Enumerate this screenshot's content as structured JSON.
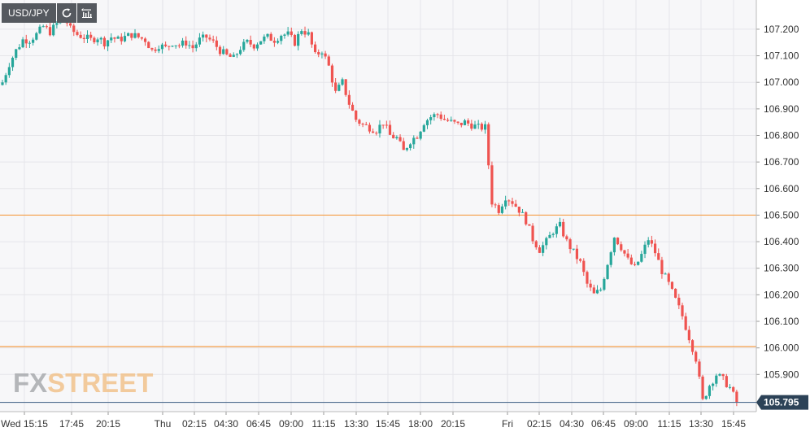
{
  "toolbar": {
    "symbol": "USD/JPY",
    "refresh_icon": "refresh-icon",
    "indicator_icon": "indicator-icon"
  },
  "logo": {
    "part1": "FX",
    "part2": "STREET"
  },
  "colors": {
    "up": "#26a69a",
    "down": "#ef5350",
    "support": "#f5a04a",
    "last_line": "#4f6d8f",
    "last_badge": "#2c4257",
    "grid": "#e6e6ea",
    "plot_bg": "#f7f7f9"
  },
  "chart_data": {
    "type": "candlestick",
    "title": "USD/JPY",
    "ylim": [
      105.76,
      107.31
    ],
    "y_ticks": [
      "107.200",
      "107.100",
      "107.000",
      "106.900",
      "106.800",
      "106.700",
      "106.600",
      "106.500",
      "106.400",
      "106.300",
      "106.200",
      "106.100",
      "106.000",
      "105.900"
    ],
    "x_ticks": [
      "Wed 15:15",
      "17:45",
      "20:15",
      "Thu",
      "02:15",
      "04:30",
      "06:45",
      "09:00",
      "11:15",
      "13:30",
      "15:45",
      "18:00",
      "20:15",
      "Fri",
      "02:15",
      "04:30",
      "06:45",
      "09:00",
      "11:15",
      "13:30",
      "15:45"
    ],
    "horizontal_lines": [
      106.5,
      106.005
    ],
    "last_price": "105.795",
    "last_price_value": 105.795,
    "close_path": [
      [
        0,
        107.0
      ],
      [
        2,
        107.07
      ],
      [
        4,
        107.12
      ],
      [
        6,
        107.16
      ],
      [
        8,
        107.16
      ],
      [
        10,
        107.18
      ],
      [
        12,
        107.21
      ],
      [
        14,
        107.19
      ],
      [
        16,
        107.22
      ],
      [
        18,
        107.25
      ],
      [
        20,
        107.2
      ],
      [
        22,
        107.18
      ],
      [
        24,
        107.17
      ],
      [
        26,
        107.16
      ],
      [
        28,
        107.17
      ],
      [
        30,
        107.15
      ],
      [
        32,
        107.17
      ],
      [
        34,
        107.16
      ],
      [
        36,
        107.17
      ],
      [
        38,
        107.18
      ],
      [
        40,
        107.17
      ],
      [
        42,
        107.16
      ],
      [
        44,
        107.12
      ],
      [
        46,
        107.14
      ],
      [
        48,
        107.13
      ],
      [
        50,
        107.15
      ],
      [
        52,
        107.14
      ],
      [
        54,
        107.15
      ],
      [
        56,
        107.13
      ],
      [
        58,
        107.16
      ],
      [
        60,
        107.17
      ],
      [
        62,
        107.15
      ],
      [
        64,
        107.12
      ],
      [
        66,
        107.1
      ],
      [
        68,
        107.09
      ],
      [
        70,
        107.13
      ],
      [
        72,
        107.15
      ],
      [
        74,
        107.14
      ],
      [
        76,
        107.16
      ],
      [
        78,
        107.17
      ],
      [
        80,
        107.16
      ],
      [
        82,
        107.18
      ],
      [
        84,
        107.18
      ],
      [
        86,
        107.15
      ],
      [
        88,
        107.2
      ],
      [
        90,
        107.18
      ],
      [
        92,
        107.1
      ],
      [
        94,
        107.12
      ],
      [
        96,
        107.06
      ],
      [
        98,
        106.96
      ],
      [
        100,
        107.0
      ],
      [
        102,
        106.92
      ],
      [
        104,
        106.86
      ],
      [
        106,
        106.84
      ],
      [
        108,
        106.83
      ],
      [
        110,
        106.82
      ],
      [
        112,
        106.85
      ],
      [
        114,
        106.8
      ],
      [
        116,
        106.79
      ],
      [
        118,
        106.74
      ],
      [
        120,
        106.78
      ],
      [
        122,
        106.8
      ],
      [
        124,
        106.85
      ],
      [
        126,
        106.87
      ],
      [
        128,
        106.88
      ],
      [
        130,
        106.86
      ],
      [
        132,
        106.85
      ],
      [
        134,
        106.84
      ],
      [
        136,
        106.85
      ],
      [
        138,
        106.84
      ],
      [
        140,
        106.83
      ],
      [
        142,
        106.83
      ],
      [
        144,
        106.55
      ],
      [
        146,
        106.52
      ],
      [
        148,
        106.57
      ],
      [
        150,
        106.55
      ],
      [
        152,
        106.52
      ],
      [
        154,
        106.48
      ],
      [
        156,
        106.41
      ],
      [
        158,
        106.37
      ],
      [
        160,
        106.4
      ],
      [
        162,
        106.44
      ],
      [
        164,
        106.46
      ],
      [
        166,
        106.4
      ],
      [
        168,
        106.36
      ],
      [
        170,
        106.32
      ],
      [
        172,
        106.24
      ],
      [
        174,
        106.2
      ],
      [
        176,
        106.22
      ],
      [
        178,
        106.32
      ],
      [
        180,
        106.42
      ],
      [
        182,
        106.38
      ],
      [
        184,
        106.33
      ],
      [
        186,
        106.3
      ],
      [
        188,
        106.35
      ],
      [
        190,
        106.41
      ],
      [
        192,
        106.36
      ],
      [
        194,
        106.29
      ],
      [
        196,
        106.24
      ],
      [
        198,
        106.18
      ],
      [
        200,
        106.12
      ],
      [
        202,
        106.04
      ],
      [
        204,
        105.96
      ],
      [
        206,
        105.8
      ],
      [
        208,
        105.86
      ],
      [
        210,
        105.9
      ],
      [
        212,
        105.88
      ],
      [
        214,
        105.85
      ],
      [
        216,
        105.795
      ]
    ]
  }
}
